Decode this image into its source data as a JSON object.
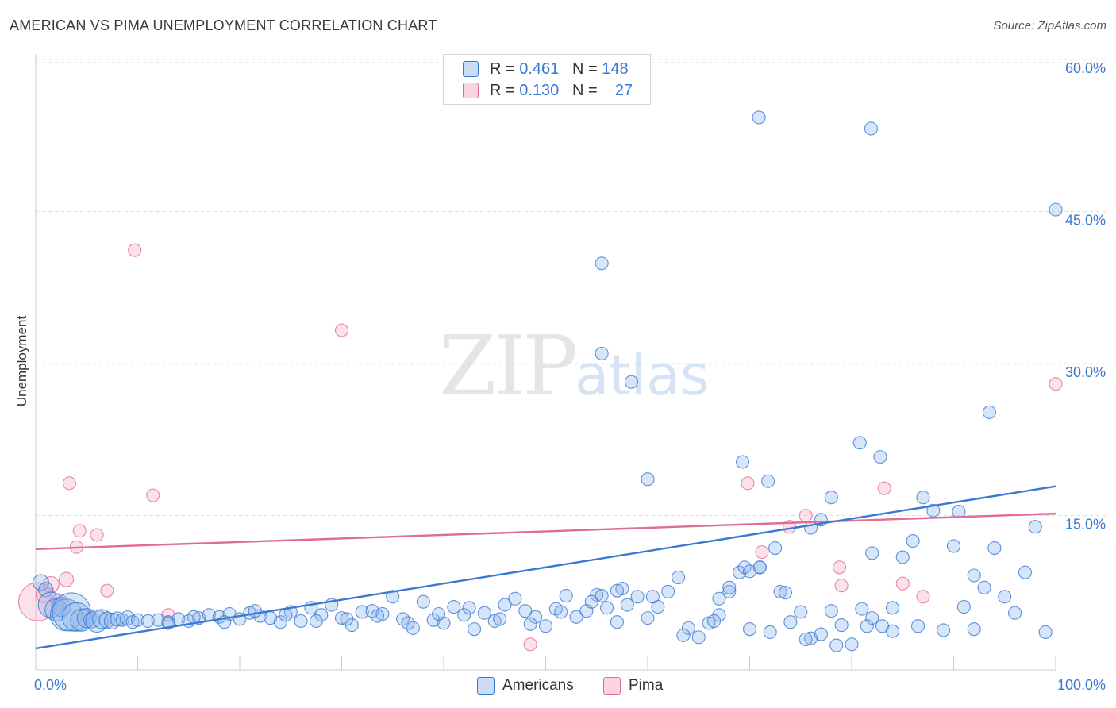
{
  "header": {
    "title": "AMERICAN VS PIMA UNEMPLOYMENT CORRELATION CHART",
    "source": "Source: ZipAtlas.com"
  },
  "colors": {
    "americans": "#3a78d4",
    "americans_fill": "rgba(140,180,235,0.35)",
    "pima": "#e06b93",
    "pima_fill": "rgba(245,170,195,0.35)",
    "grid": "#dddddd",
    "tick_label": "#3a78d4"
  },
  "legend": {
    "r_label": "R =",
    "n_label": "N =",
    "rows": [
      {
        "series": "americans",
        "r_value": "0.461",
        "n_value": "148"
      },
      {
        "series": "pima",
        "r_value": "0.130",
        "n_value": "27"
      }
    ]
  },
  "watermark": {
    "zip": "ZIP",
    "atlas": "atlas"
  },
  "chart_data": {
    "type": "scatter",
    "title": "AMERICAN VS PIMA UNEMPLOYMENT CORRELATION CHART",
    "xlabel": "",
    "ylabel": "Unemployment",
    "xlim": [
      0,
      100
    ],
    "ylim": [
      0,
      60
    ],
    "x_tick_labels": [
      "0.0%",
      "100.0%"
    ],
    "y_ticks": [
      15,
      30,
      45,
      60
    ],
    "y_tick_labels": [
      "15.0%",
      "30.0%",
      "45.0%",
      "60.0%"
    ],
    "grid": true,
    "legend_position": "bottom",
    "series": [
      {
        "name": "Americans",
        "trend": {
          "x": [
            0,
            100
          ],
          "y": [
            2.2,
            18.2
          ]
        },
        "points": [
          [
            0.5,
            8.7,
            10
          ],
          [
            1,
            8,
            9
          ],
          [
            1.5,
            6.5,
            16
          ],
          [
            2,
            6,
            14
          ],
          [
            2.5,
            6.3,
            12
          ],
          [
            3,
            5.5,
            20
          ],
          [
            3.5,
            5.8,
            24
          ],
          [
            4,
            5.3,
            18
          ],
          [
            4.5,
            5,
            14
          ],
          [
            5,
            5.2,
            12
          ],
          [
            5.5,
            5,
            10
          ],
          [
            6,
            4.9,
            14
          ],
          [
            6.5,
            5.1,
            12
          ],
          [
            7,
            5,
            10
          ],
          [
            7.5,
            4.9,
            10
          ],
          [
            8,
            5.1,
            9
          ],
          [
            8.5,
            5,
            8
          ],
          [
            9,
            5.2,
            9
          ],
          [
            9.5,
            4.8,
            8
          ],
          [
            10,
            5,
            8
          ],
          [
            11,
            4.9,
            8
          ],
          [
            12,
            5,
            8
          ],
          [
            13,
            4.8,
            8
          ],
          [
            14,
            5.1,
            8
          ],
          [
            15,
            4.9,
            8
          ],
          [
            16,
            5.2,
            8
          ],
          [
            17,
            5.5,
            8
          ],
          [
            18,
            5.3,
            8
          ],
          [
            19,
            5.6,
            8
          ],
          [
            20,
            5.1,
            8
          ],
          [
            21,
            5.7,
            8
          ],
          [
            22,
            5.4,
            8
          ],
          [
            23,
            5.2,
            8
          ],
          [
            24,
            4.8,
            8
          ],
          [
            25,
            5.8,
            8
          ],
          [
            26,
            4.9,
            8
          ],
          [
            27,
            6.2,
            8
          ],
          [
            28,
            5.5,
            8
          ],
          [
            29,
            6.5,
            8
          ],
          [
            30,
            5.2,
            8
          ],
          [
            31,
            4.5,
            8
          ],
          [
            32,
            5.8,
            8
          ],
          [
            33,
            5.9,
            8
          ],
          [
            34,
            5.6,
            8
          ],
          [
            35,
            7.3,
            8
          ],
          [
            36,
            5.1,
            8
          ],
          [
            37,
            4.2,
            8
          ],
          [
            38,
            6.8,
            8
          ],
          [
            39,
            5,
            8
          ],
          [
            40,
            4.7,
            8
          ],
          [
            41,
            6.3,
            8
          ],
          [
            42,
            5.5,
            8
          ],
          [
            43,
            4.1,
            8
          ],
          [
            44,
            5.7,
            8
          ],
          [
            45,
            4.9,
            8
          ],
          [
            46,
            6.5,
            8
          ],
          [
            47,
            7.1,
            8
          ],
          [
            48,
            5.9,
            8
          ],
          [
            49,
            5.3,
            8
          ],
          [
            50,
            4.4,
            8
          ],
          [
            51,
            6.1,
            8
          ],
          [
            52,
            7.4,
            8
          ],
          [
            53,
            5.3,
            8
          ],
          [
            54,
            5.9,
            8
          ],
          [
            55,
            7.5,
            8
          ],
          [
            56,
            6.2,
            8
          ],
          [
            57,
            4.8,
            8
          ],
          [
            58,
            6.5,
            8
          ],
          [
            59,
            7.3,
            8
          ],
          [
            60,
            5.2,
            8
          ],
          [
            61,
            6.3,
            8
          ],
          [
            62,
            7.8,
            8
          ],
          [
            63,
            9.2,
            8
          ],
          [
            64,
            4.2,
            8
          ],
          [
            65,
            3.3,
            8
          ],
          [
            66,
            4.7,
            8
          ],
          [
            67,
            5.5,
            8
          ],
          [
            68,
            7.8,
            8
          ],
          [
            69,
            9.7,
            8
          ],
          [
            70,
            4.1,
            8
          ],
          [
            71,
            10.2,
            8
          ],
          [
            72,
            3.8,
            8
          ],
          [
            73,
            7.8,
            8
          ],
          [
            74,
            4.8,
            8
          ],
          [
            75,
            5.8,
            8
          ],
          [
            76,
            3.2,
            8
          ],
          [
            77,
            3.6,
            8
          ],
          [
            78,
            5.9,
            8
          ],
          [
            79,
            4.5,
            8
          ],
          [
            80,
            2.6,
            8
          ],
          [
            81,
            6.1,
            8
          ],
          [
            82,
            5.2,
            8
          ],
          [
            83,
            4.4,
            8
          ],
          [
            84,
            3.9,
            8
          ],
          [
            85,
            11.2,
            8
          ],
          [
            86,
            12.8,
            8
          ],
          [
            87,
            17.1,
            8
          ],
          [
            88,
            15.8,
            8
          ],
          [
            89,
            4,
            8
          ],
          [
            90,
            12.3,
            8
          ],
          [
            91,
            6.3,
            8
          ],
          [
            92,
            9.4,
            8
          ],
          [
            93,
            8.2,
            8
          ],
          [
            94,
            12.1,
            8
          ],
          [
            95,
            7.3,
            8
          ],
          [
            96,
            5.7,
            8
          ],
          [
            97,
            9.7,
            8
          ],
          [
            98,
            14.2,
            8
          ],
          [
            99,
            3.8,
            8
          ],
          [
            13,
            4.7,
            8
          ],
          [
            15.5,
            5.3,
            8
          ],
          [
            18.5,
            4.8,
            8
          ],
          [
            21.5,
            5.9,
            8
          ],
          [
            24.5,
            5.5,
            8
          ],
          [
            27.5,
            4.9,
            8
          ],
          [
            30.5,
            5.1,
            8
          ],
          [
            33.5,
            5.4,
            8
          ],
          [
            36.5,
            4.7,
            8
          ],
          [
            39.5,
            5.6,
            8
          ],
          [
            42.5,
            6.2,
            8
          ],
          [
            45.5,
            5.1,
            8
          ],
          [
            48.5,
            4.6,
            8
          ],
          [
            51.5,
            5.8,
            8
          ],
          [
            54.5,
            6.8,
            8
          ],
          [
            57.5,
            8.1,
            8
          ],
          [
            60.5,
            7.3,
            8
          ],
          [
            63.5,
            3.5,
            8
          ],
          [
            66.5,
            4.9,
            8
          ],
          [
            69.5,
            10.2,
            8
          ],
          [
            72.5,
            12.1,
            8
          ],
          [
            75.5,
            3.1,
            8
          ],
          [
            78.5,
            2.5,
            8
          ],
          [
            81.5,
            4.4,
            8
          ],
          [
            60,
            18.9,
            8
          ],
          [
            57,
            7.9,
            8
          ],
          [
            55.5,
            7.4,
            8
          ],
          [
            67,
            7.1,
            8
          ],
          [
            68,
            8.2,
            8
          ],
          [
            70,
            9.8,
            8
          ],
          [
            71,
            10.2,
            8
          ],
          [
            73.5,
            7.7,
            8
          ],
          [
            76,
            14.1,
            8
          ],
          [
            78,
            17.1,
            8
          ],
          [
            82,
            11.6,
            8
          ],
          [
            84,
            6.2,
            8
          ],
          [
            86.5,
            4.4,
            8
          ],
          [
            90.5,
            15.7,
            8
          ],
          [
            92,
            4.1,
            8
          ],
          [
            69.3,
            20.6,
            8
          ],
          [
            71.8,
            18.7,
            8
          ],
          [
            80.8,
            22.5,
            8
          ],
          [
            82.8,
            21.1,
            8
          ],
          [
            93.5,
            25.5,
            8
          ],
          [
            77,
            14.9,
            8
          ],
          [
            55.5,
            31.3,
            8
          ],
          [
            58.4,
            28.5,
            8
          ],
          [
            55.5,
            40.2,
            8
          ],
          [
            70.9,
            54.6,
            8
          ],
          [
            81.9,
            53.5,
            8
          ],
          [
            100,
            45.5,
            8
          ]
        ]
      },
      {
        "name": "Pima",
        "trend": {
          "x": [
            0,
            100
          ],
          "y": [
            12,
            15.5
          ]
        },
        "points": [
          [
            0.2,
            6.8,
            24
          ],
          [
            0.8,
            7.5,
            10
          ],
          [
            1.5,
            8.5,
            10
          ],
          [
            2.3,
            6.8,
            10
          ],
          [
            3,
            9,
            9
          ],
          [
            3.3,
            18.5,
            8
          ],
          [
            4,
            12.2,
            8
          ],
          [
            4.3,
            13.8,
            8
          ],
          [
            6,
            13.4,
            8
          ],
          [
            7,
            7.9,
            8
          ],
          [
            9.7,
            41.5,
            8
          ],
          [
            11.5,
            17.3,
            8
          ],
          [
            13,
            5.5,
            8
          ],
          [
            30,
            33.6,
            8
          ],
          [
            48.5,
            2.6,
            8
          ],
          [
            69.8,
            18.5,
            8
          ],
          [
            71.2,
            11.7,
            8
          ],
          [
            73.9,
            14.2,
            8
          ],
          [
            75.5,
            15.3,
            8
          ],
          [
            78.8,
            10.2,
            8
          ],
          [
            79,
            8.4,
            8
          ],
          [
            83.2,
            18,
            8
          ],
          [
            85,
            8.6,
            8
          ],
          [
            87,
            7.3,
            8
          ],
          [
            100,
            28.3,
            8
          ]
        ]
      }
    ]
  },
  "bottom_legend": {
    "items": [
      {
        "label": "Americans"
      },
      {
        "label": "Pima"
      }
    ]
  }
}
